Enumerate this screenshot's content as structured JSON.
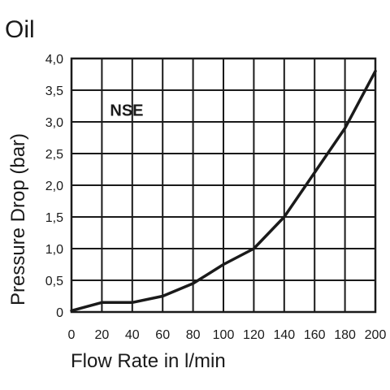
{
  "chart_data": {
    "type": "line",
    "title": "Oil",
    "xlabel": "Flow Rate in l/min",
    "ylabel": "Pressure Drop (bar)",
    "xlim": [
      0,
      200
    ],
    "ylim": [
      0,
      4
    ],
    "grid": true,
    "x_ticks": [
      0,
      20,
      40,
      60,
      80,
      100,
      120,
      140,
      160,
      180,
      200
    ],
    "x_tick_labels": [
      "0",
      "20",
      "40",
      "60",
      "80",
      "100",
      "120",
      "140",
      "160",
      "180",
      "200"
    ],
    "y_ticks": [
      0,
      0.5,
      1,
      1.5,
      2,
      2.5,
      3,
      3.5,
      4
    ],
    "y_tick_labels": [
      "0",
      "0,5",
      "1,0",
      "1,5",
      "2,0",
      "2,5",
      "3,0",
      "3,5",
      "4,0"
    ],
    "annotation": {
      "text": "NSE",
      "x": 20,
      "y": 3.25
    },
    "series": [
      {
        "x": [
          0,
          20,
          40,
          60,
          80,
          100,
          120,
          140,
          160,
          180,
          200
        ],
        "y": [
          0.02,
          0.15,
          0.15,
          0.25,
          0.45,
          0.75,
          1.0,
          1.5,
          2.2,
          2.9,
          3.8
        ]
      }
    ]
  }
}
